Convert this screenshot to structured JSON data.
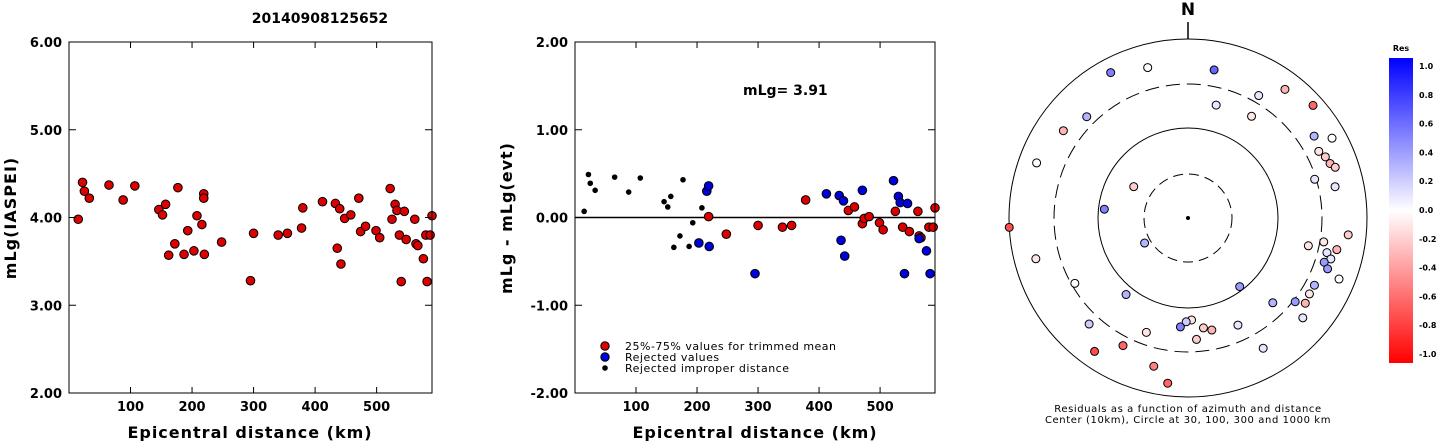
{
  "title": "20140908125652",
  "chart_data": [
    {
      "type": "scatter",
      "ylabel": "mLg(IASPEI)",
      "xlabel": "Epicentral distance (km)",
      "xlim": [
        0,
        590
      ],
      "ylim": [
        2.0,
        6.0
      ],
      "xticks": [
        100,
        200,
        300,
        400,
        500
      ],
      "yticks": [
        "2.00",
        "3.00",
        "4.00",
        "5.00",
        "6.00"
      ],
      "points": [
        [
          15,
          3.98
        ],
        [
          22,
          4.4
        ],
        [
          25,
          4.3
        ],
        [
          33,
          4.22
        ],
        [
          65,
          4.37
        ],
        [
          88,
          4.2
        ],
        [
          107,
          4.36
        ],
        [
          146,
          4.09
        ],
        [
          152,
          4.03
        ],
        [
          157,
          4.15
        ],
        [
          162,
          3.57
        ],
        [
          172,
          3.7
        ],
        [
          177,
          4.34
        ],
        [
          187,
          3.58
        ],
        [
          193,
          3.85
        ],
        [
          203,
          3.62
        ],
        [
          208,
          4.02
        ],
        [
          216,
          3.92
        ],
        [
          219,
          4.27
        ],
        [
          219,
          4.22
        ],
        [
          220,
          3.58
        ],
        [
          248,
          3.72
        ],
        [
          295,
          3.28
        ],
        [
          300,
          3.82
        ],
        [
          340,
          3.8
        ],
        [
          355,
          3.82
        ],
        [
          378,
          3.88
        ],
        [
          380,
          4.11
        ],
        [
          412,
          4.18
        ],
        [
          433,
          4.16
        ],
        [
          436,
          3.65
        ],
        [
          440,
          4.1
        ],
        [
          442,
          3.47
        ],
        [
          448,
          3.99
        ],
        [
          458,
          4.03
        ],
        [
          471,
          4.22
        ],
        [
          474,
          3.84
        ],
        [
          482,
          3.9
        ],
        [
          499,
          3.85
        ],
        [
          505,
          3.77
        ],
        [
          522,
          4.33
        ],
        [
          525,
          3.98
        ],
        [
          530,
          4.15
        ],
        [
          533,
          4.08
        ],
        [
          537,
          3.8
        ],
        [
          540,
          3.27
        ],
        [
          545,
          4.07
        ],
        [
          548,
          3.75
        ],
        [
          562,
          3.98
        ],
        [
          564,
          3.7
        ],
        [
          567,
          3.68
        ],
        [
          576,
          3.53
        ],
        [
          580,
          3.8
        ],
        [
          582,
          3.27
        ],
        [
          587,
          3.8
        ],
        [
          590,
          4.02
        ]
      ]
    },
    {
      "type": "scatter",
      "ylabel": "mLg - mLg(evt)",
      "xlabel": "Epicentral distance (km)",
      "xlim": [
        0,
        590
      ],
      "ylim": [
        -2.0,
        2.0
      ],
      "xticks": [
        100,
        200,
        300,
        400,
        500
      ],
      "yticks": [
        "-2.00",
        "-1.00",
        "0.00",
        "1.00",
        "2.00"
      ],
      "annotation": "mLg= 3.91",
      "legend": [
        {
          "label": "25%-75% values for trimmed mean",
          "color": "#dd0000"
        },
        {
          "label": "Rejected values",
          "color": "#0000dd"
        },
        {
          "label": "Rejected improper distance",
          "color": "#000000"
        }
      ],
      "series": [
        {
          "color": "#dd0000",
          "points": [
            [
              219,
              0.01
            ],
            [
              248,
              -0.19
            ],
            [
              300,
              -0.09
            ],
            [
              340,
              -0.11
            ],
            [
              355,
              -0.09
            ],
            [
              378,
              0.2
            ],
            [
              448,
              0.08
            ],
            [
              458,
              0.12
            ],
            [
              471,
              -0.07
            ],
            [
              474,
              -0.01
            ],
            [
              482,
              0.01
            ],
            [
              499,
              -0.06
            ],
            [
              505,
              -0.14
            ],
            [
              525,
              0.07
            ],
            [
              537,
              -0.11
            ],
            [
              548,
              -0.16
            ],
            [
              562,
              0.07
            ],
            [
              564,
              -0.21
            ],
            [
              567,
              -0.23
            ],
            [
              580,
              -0.11
            ],
            [
              587,
              -0.11
            ],
            [
              590,
              0.11
            ]
          ]
        },
        {
          "color": "#0000dd",
          "points": [
            [
              203,
              -0.29
            ],
            [
              216,
              0.3
            ],
            [
              219,
              0.36
            ],
            [
              220,
              -0.33
            ],
            [
              295,
              -0.64
            ],
            [
              412,
              0.27
            ],
            [
              433,
              0.25
            ],
            [
              436,
              -0.26
            ],
            [
              440,
              0.19
            ],
            [
              442,
              -0.44
            ],
            [
              471,
              0.31
            ],
            [
              522,
              0.42
            ],
            [
              530,
              0.24
            ],
            [
              533,
              0.17
            ],
            [
              540,
              -0.64
            ],
            [
              545,
              0.16
            ],
            [
              564,
              -0.24
            ],
            [
              576,
              -0.38
            ],
            [
              582,
              -0.64
            ]
          ]
        },
        {
          "color": "#000000",
          "points": [
            [
              15,
              0.07
            ],
            [
              22,
              0.49
            ],
            [
              25,
              0.39
            ],
            [
              33,
              0.31
            ],
            [
              65,
              0.46
            ],
            [
              88,
              0.29
            ],
            [
              107,
              0.45
            ],
            [
              146,
              0.18
            ],
            [
              152,
              0.12
            ],
            [
              157,
              0.24
            ],
            [
              162,
              -0.34
            ],
            [
              172,
              -0.21
            ],
            [
              177,
              0.43
            ],
            [
              187,
              -0.33
            ],
            [
              193,
              -0.06
            ],
            [
              208,
              0.11
            ]
          ]
        }
      ]
    },
    {
      "type": "scatter",
      "subtype": "polar-residuals",
      "north_label": "N",
      "caption": [
        "Residuals as a function of azimuth and distance",
        "Center (10km), Circle at 30, 100, 300 and 1000 km"
      ],
      "colorbar": {
        "title": "Res",
        "labels": [
          "1.0",
          "0.8",
          "0.6",
          "0.4",
          "0.2",
          "0.0",
          "-0.2",
          "-0.4",
          "-0.6",
          "-0.8",
          "-1.0"
        ],
        "max_color": "#0000ff",
        "mid_color": "#ffffff",
        "min_color": "#ff0000"
      },
      "points": [
        {
          "az": 10,
          "r": 0.84,
          "res": 0.6
        },
        {
          "az": 14,
          "r": 0.65,
          "res": 0.1
        },
        {
          "az": 30,
          "r": 0.79,
          "res": 0.1
        },
        {
          "az": 32,
          "r": 0.67,
          "res": -0.1
        },
        {
          "az": 37,
          "r": 0.9,
          "res": -0.3
        },
        {
          "az": 48,
          "r": 0.94,
          "res": -0.6
        },
        {
          "az": 57,
          "r": 0.84,
          "res": 0.3
        },
        {
          "az": 61,
          "r": 0.92,
          "res": 0.0
        },
        {
          "az": 63,
          "r": 0.82,
          "res": -0.1
        },
        {
          "az": 66,
          "r": 0.84,
          "res": -0.2
        },
        {
          "az": 69,
          "r": 0.85,
          "res": -0.3
        },
        {
          "az": 71,
          "r": 0.87,
          "res": -0.2
        },
        {
          "az": 73,
          "r": 0.74,
          "res": 0.1
        },
        {
          "az": 78,
          "r": 0.84,
          "res": 0.1
        },
        {
          "az": 96,
          "r": 0.9,
          "res": -0.2
        },
        {
          "az": 100,
          "r": 0.77,
          "res": -0.1
        },
        {
          "az": 102,
          "r": 0.85,
          "res": -0.3
        },
        {
          "az": 103,
          "r": 0.69,
          "res": -0.1
        },
        {
          "az": 104,
          "r": 0.8,
          "res": 0.1
        },
        {
          "az": 106,
          "r": 0.83,
          "res": 0.1
        },
        {
          "az": 108,
          "r": 0.8,
          "res": 0.4
        },
        {
          "az": 110,
          "r": 0.83,
          "res": 0.4
        },
        {
          "az": 112,
          "r": 0.91,
          "res": 0.0
        },
        {
          "az": 118,
          "r": 0.8,
          "res": 0.3
        },
        {
          "az": 122,
          "r": 0.8,
          "res": -0.1
        },
        {
          "az": 126,
          "r": 0.81,
          "res": -0.3
        },
        {
          "az": 128,
          "r": 0.76,
          "res": 0.4
        },
        {
          "az": 131,
          "r": 0.85,
          "res": 0.1
        },
        {
          "az": 135,
          "r": 0.67,
          "res": 0.3
        },
        {
          "az": 150,
          "r": 0.84,
          "res": 0.1
        },
        {
          "az": 155,
          "r": 0.66,
          "res": 0.1
        },
        {
          "az": 168,
          "r": 0.64,
          "res": -0.3
        },
        {
          "az": 172,
          "r": 0.62,
          "res": -0.2
        },
        {
          "az": 176,
          "r": 0.68,
          "res": -0.2
        },
        {
          "az": 178,
          "r": 0.57,
          "res": -0.1
        },
        {
          "az": 181,
          "r": 0.58,
          "res": 0.2
        },
        {
          "az": 184,
          "r": 0.61,
          "res": 0.5
        },
        {
          "az": 187,
          "r": 0.93,
          "res": -0.6
        },
        {
          "az": 193,
          "r": 0.85,
          "res": -0.5
        },
        {
          "az": 200,
          "r": 0.68,
          "res": -0.1
        },
        {
          "az": 207,
          "r": 0.8,
          "res": -0.6
        },
        {
          "az": 215,
          "r": 0.91,
          "res": -0.7
        },
        {
          "az": 219,
          "r": 0.55,
          "res": 0.3
        },
        {
          "az": 223,
          "r": 0.81,
          "res": 0.2
        },
        {
          "az": 240,
          "r": 0.73,
          "res": 0.0
        },
        {
          "az": 255,
          "r": 0.88,
          "res": -0.1
        },
        {
          "az": 267,
          "r": 1.0,
          "res": -0.7
        },
        {
          "az": 290,
          "r": 0.9,
          "res": 0.0
        },
        {
          "az": 305,
          "r": 0.85,
          "res": -0.3
        },
        {
          "az": 315,
          "r": 0.8,
          "res": 0.3
        },
        {
          "az": 332,
          "r": 0.92,
          "res": 0.5
        },
        {
          "az": 345,
          "r": 0.87,
          "res": 0.0
        },
        {
          "az": 240,
          "r": 0.28,
          "res": 0.3
        },
        {
          "az": 300,
          "r": 0.35,
          "res": -0.2
        },
        {
          "az": 276,
          "r": 0.47,
          "res": 0.5
        },
        {
          "az": 143,
          "r": 0.48,
          "res": 0.4
        }
      ]
    }
  ]
}
